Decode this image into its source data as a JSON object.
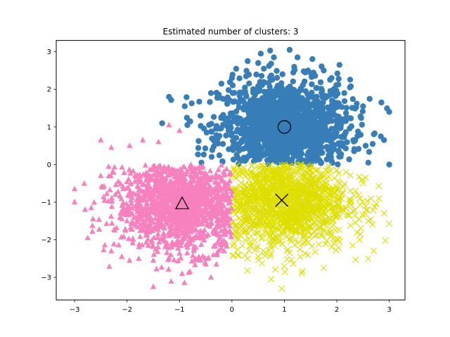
{
  "chart_data": {
    "type": "scatter",
    "title": "Estimated number of clusters: 3",
    "xlabel": "",
    "ylabel": "",
    "xlim": [
      -3.35,
      3.3
    ],
    "ylim": [
      -3.6,
      3.3
    ],
    "xticks": [
      -3,
      -2,
      -1,
      0,
      1,
      2,
      3
    ],
    "yticks": [
      -3,
      -2,
      -1,
      0,
      1,
      2,
      3
    ],
    "xtick_labels": [
      "−3",
      "−2",
      "−1",
      "0",
      "1",
      "2",
      "3"
    ],
    "ytick_labels": [
      "−3",
      "−2",
      "−1",
      "0",
      "1",
      "2",
      "3"
    ],
    "grid": false,
    "legend": "none",
    "series": [
      {
        "marker": "circle",
        "color": "#377eb8",
        "center": [
          1.0,
          1.0
        ],
        "region": "y > 0 (upper region)",
        "sample_points": [
          [
            -1.2,
            1.8
          ],
          [
            -0.9,
            1.55
          ],
          [
            -0.85,
            1.05
          ],
          [
            -0.6,
            1.3
          ],
          [
            -0.4,
            1.9
          ],
          [
            -0.2,
            2.15
          ],
          [
            0.0,
            2.3
          ],
          [
            0.3,
            2.75
          ],
          [
            0.5,
            2.7
          ],
          [
            0.55,
            2.95
          ],
          [
            0.8,
            2.85
          ],
          [
            1.1,
            3.05
          ],
          [
            1.25,
            2.85
          ],
          [
            1.45,
            2.5
          ],
          [
            1.75,
            2.5
          ],
          [
            1.9,
            2.3
          ],
          [
            2.05,
            2.65
          ],
          [
            2.25,
            2.05
          ],
          [
            2.5,
            1.55
          ],
          [
            2.85,
            1.65
          ],
          [
            3.0,
            1.4
          ],
          [
            2.9,
            0.65
          ],
          [
            3.0,
            0.0
          ],
          [
            2.55,
            0.5
          ],
          [
            2.6,
            0.05
          ],
          [
            2.35,
            0.65
          ],
          [
            1.9,
            0.1
          ]
        ]
      },
      {
        "marker": "x",
        "color": "#dede00",
        "center": [
          0.95,
          -0.95
        ],
        "region": "x > 0, y < 0 (lower-right region)",
        "sample_points": [
          [
            0.3,
            -2.5
          ],
          [
            0.2,
            -2.15
          ],
          [
            0.5,
            -2.45
          ],
          [
            0.75,
            -3.05
          ],
          [
            1.0,
            -2.7
          ],
          [
            1.3,
            -2.45
          ],
          [
            1.75,
            -2.75
          ],
          [
            1.45,
            -2.4
          ],
          [
            1.9,
            -2.2
          ],
          [
            2.05,
            -2.05
          ],
          [
            2.3,
            -2.15
          ],
          [
            2.6,
            -2.5
          ],
          [
            2.45,
            -1.85
          ],
          [
            2.6,
            -1.5
          ],
          [
            2.8,
            -0.9
          ],
          [
            2.75,
            -1.05
          ],
          [
            2.55,
            -0.35
          ],
          [
            2.9,
            -1.3
          ],
          [
            2.65,
            -0.9
          ],
          [
            2.0,
            -0.15
          ],
          [
            1.5,
            -0.05
          ],
          [
            0.95,
            -3.3
          ]
        ]
      },
      {
        "marker": "triangle",
        "color": "#f781bf",
        "center": [
          -0.95,
          -1.05
        ],
        "region": "x < 0, y < 0 (left region)",
        "sample_points": [
          [
            -3.0,
            -0.65
          ],
          [
            -3.0,
            -1.0
          ],
          [
            -2.75,
            -1.95
          ],
          [
            -2.5,
            -0.3
          ],
          [
            -2.5,
            0.65
          ],
          [
            -2.3,
            0.45
          ],
          [
            -2.3,
            -2.3
          ],
          [
            -2.1,
            -2.45
          ],
          [
            -1.95,
            0.5
          ],
          [
            -1.7,
            0.65
          ],
          [
            -1.5,
            -2.55
          ],
          [
            -1.5,
            -3.25
          ],
          [
            -1.2,
            1.05
          ],
          [
            -1.0,
            0.9
          ],
          [
            -0.95,
            -2.9
          ],
          [
            -0.8,
            -2.85
          ],
          [
            -0.5,
            -2.65
          ],
          [
            -0.4,
            -3.0
          ],
          [
            -0.15,
            -2.3
          ],
          [
            -1.4,
            0.6
          ],
          [
            -2.65,
            -1.45
          ],
          [
            -2.8,
            -1.2
          ]
        ]
      }
    ],
    "centers": [
      {
        "marker": "circle",
        "x": 1.0,
        "y": 1.0
      },
      {
        "marker": "x",
        "x": 0.95,
        "y": -0.95
      },
      {
        "marker": "triangle",
        "x": -0.95,
        "y": -1.05
      }
    ]
  }
}
